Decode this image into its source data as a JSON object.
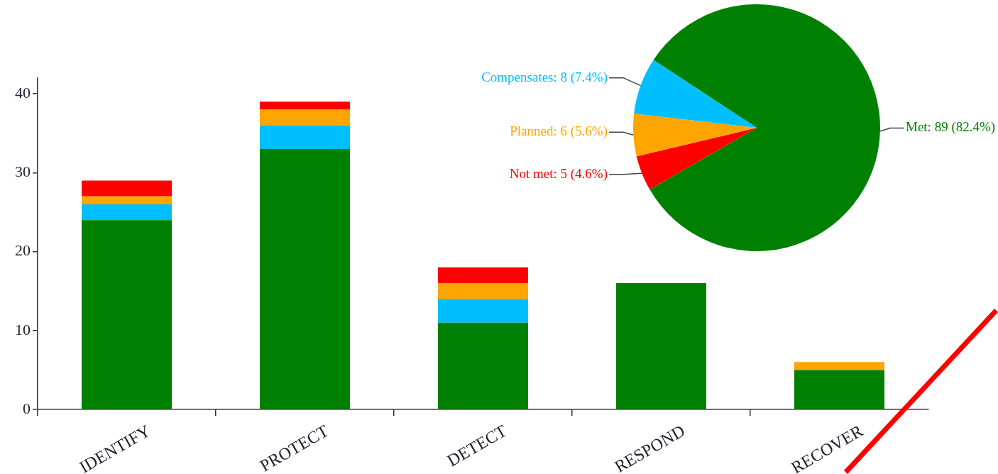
{
  "chart_data": [
    {
      "type": "bar",
      "categories": [
        "IDENTIFY",
        "PROTECT",
        "DETECT",
        "RESPOND",
        "RECOVER"
      ],
      "stacked": true,
      "series": [
        {
          "color": "#008000",
          "values": [
            24,
            33,
            11,
            16,
            5
          ]
        },
        {
          "color": "#00bfff",
          "values": [
            2,
            3,
            3,
            0,
            0
          ]
        },
        {
          "color": "#ffa500",
          "values": [
            1,
            2,
            2,
            0,
            1
          ]
        },
        {
          "color": "#ff0000",
          "values": [
            2,
            1,
            2,
            0,
            0
          ]
        }
      ],
      "ylim": [
        0,
        42
      ],
      "yticks": [
        0,
        10,
        20,
        30,
        40
      ]
    },
    {
      "type": "pie",
      "categories": [
        "Met",
        "Not met",
        "Planned",
        "Compensates"
      ],
      "values": [
        89,
        5,
        6,
        8
      ],
      "colors": [
        "#008000",
        "#ff0000",
        "#ffa500",
        "#00bfff"
      ],
      "value_labels": [
        "89 (82.4%)",
        "5 (4.6%)",
        "6 (5.6%)",
        "8 (7.4%)"
      ]
    }
  ]
}
